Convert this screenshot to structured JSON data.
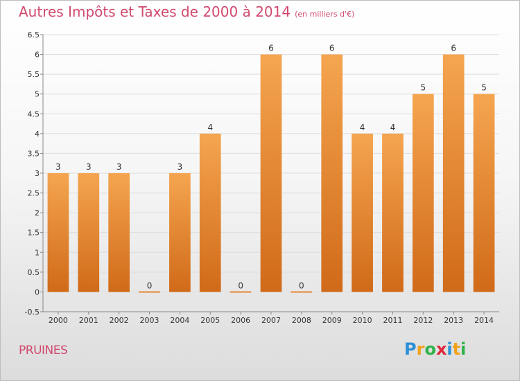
{
  "header": {
    "title": "Autres Impôts et Taxes de 2000 à 2014",
    "unit": "(en milliers d'€)"
  },
  "footer": {
    "place": "PRUINES",
    "logo_letters": [
      "P",
      "r",
      "o",
      "x",
      "i",
      "t",
      "i"
    ],
    "logo_colors": [
      "#2b8fd6",
      "#f0a21b",
      "#2fb24a",
      "#e0263a",
      "#2b8fd6",
      "#f0a21b",
      "#2fb24a"
    ]
  },
  "colors": {
    "bar_light": "#f5a550",
    "bar_dark": "#d06a18",
    "grid": "#dcdcdc",
    "axis": "#888888"
  },
  "chart_data": {
    "type": "bar",
    "categories": [
      "2000",
      "2001",
      "2002",
      "2003",
      "2004",
      "2005",
      "2006",
      "2007",
      "2008",
      "2009",
      "2010",
      "2011",
      "2012",
      "2013",
      "2014"
    ],
    "values": [
      3,
      3,
      3,
      0,
      3,
      4,
      0,
      6,
      0,
      6,
      4,
      4,
      5,
      6,
      5
    ],
    "data_labels": [
      "3",
      "3",
      "3",
      "0",
      "3",
      "4",
      "0",
      "6",
      "0",
      "6",
      "4",
      "4",
      "5",
      "6",
      "5"
    ],
    "yticks": [
      "-0.5",
      "0",
      "0.5",
      "1",
      "1.5",
      "2",
      "2.5",
      "3",
      "3.5",
      "4",
      "4.5",
      "5",
      "5.5",
      "6",
      "6.5"
    ],
    "ylim": [
      -0.5,
      6.5
    ],
    "grid": true
  }
}
